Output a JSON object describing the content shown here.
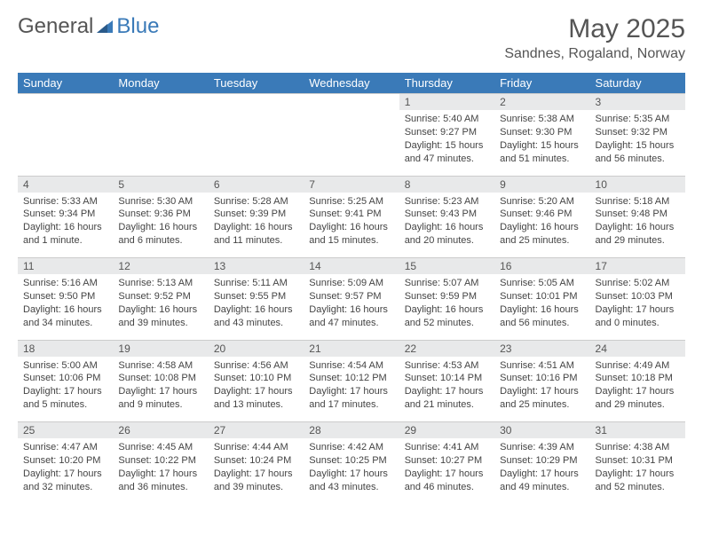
{
  "brand": {
    "part1": "General",
    "part2": "Blue"
  },
  "title": "May 2025",
  "location": "Sandnes, Rogaland, Norway",
  "colors": {
    "header_bg": "#3a7ab8",
    "header_text": "#ffffff",
    "daybar_bg": "#e8e9ea",
    "text": "#444444",
    "page_bg": "#ffffff"
  },
  "weekdays": [
    "Sunday",
    "Monday",
    "Tuesday",
    "Wednesday",
    "Thursday",
    "Friday",
    "Saturday"
  ],
  "weeks": [
    [
      null,
      null,
      null,
      null,
      {
        "n": "1",
        "sr": "Sunrise: 5:40 AM",
        "ss": "Sunset: 9:27 PM",
        "dl": "Daylight: 15 hours and 47 minutes."
      },
      {
        "n": "2",
        "sr": "Sunrise: 5:38 AM",
        "ss": "Sunset: 9:30 PM",
        "dl": "Daylight: 15 hours and 51 minutes."
      },
      {
        "n": "3",
        "sr": "Sunrise: 5:35 AM",
        "ss": "Sunset: 9:32 PM",
        "dl": "Daylight: 15 hours and 56 minutes."
      }
    ],
    [
      {
        "n": "4",
        "sr": "Sunrise: 5:33 AM",
        "ss": "Sunset: 9:34 PM",
        "dl": "Daylight: 16 hours and 1 minute."
      },
      {
        "n": "5",
        "sr": "Sunrise: 5:30 AM",
        "ss": "Sunset: 9:36 PM",
        "dl": "Daylight: 16 hours and 6 minutes."
      },
      {
        "n": "6",
        "sr": "Sunrise: 5:28 AM",
        "ss": "Sunset: 9:39 PM",
        "dl": "Daylight: 16 hours and 11 minutes."
      },
      {
        "n": "7",
        "sr": "Sunrise: 5:25 AM",
        "ss": "Sunset: 9:41 PM",
        "dl": "Daylight: 16 hours and 15 minutes."
      },
      {
        "n": "8",
        "sr": "Sunrise: 5:23 AM",
        "ss": "Sunset: 9:43 PM",
        "dl": "Daylight: 16 hours and 20 minutes."
      },
      {
        "n": "9",
        "sr": "Sunrise: 5:20 AM",
        "ss": "Sunset: 9:46 PM",
        "dl": "Daylight: 16 hours and 25 minutes."
      },
      {
        "n": "10",
        "sr": "Sunrise: 5:18 AM",
        "ss": "Sunset: 9:48 PM",
        "dl": "Daylight: 16 hours and 29 minutes."
      }
    ],
    [
      {
        "n": "11",
        "sr": "Sunrise: 5:16 AM",
        "ss": "Sunset: 9:50 PM",
        "dl": "Daylight: 16 hours and 34 minutes."
      },
      {
        "n": "12",
        "sr": "Sunrise: 5:13 AM",
        "ss": "Sunset: 9:52 PM",
        "dl": "Daylight: 16 hours and 39 minutes."
      },
      {
        "n": "13",
        "sr": "Sunrise: 5:11 AM",
        "ss": "Sunset: 9:55 PM",
        "dl": "Daylight: 16 hours and 43 minutes."
      },
      {
        "n": "14",
        "sr": "Sunrise: 5:09 AM",
        "ss": "Sunset: 9:57 PM",
        "dl": "Daylight: 16 hours and 47 minutes."
      },
      {
        "n": "15",
        "sr": "Sunrise: 5:07 AM",
        "ss": "Sunset: 9:59 PM",
        "dl": "Daylight: 16 hours and 52 minutes."
      },
      {
        "n": "16",
        "sr": "Sunrise: 5:05 AM",
        "ss": "Sunset: 10:01 PM",
        "dl": "Daylight: 16 hours and 56 minutes."
      },
      {
        "n": "17",
        "sr": "Sunrise: 5:02 AM",
        "ss": "Sunset: 10:03 PM",
        "dl": "Daylight: 17 hours and 0 minutes."
      }
    ],
    [
      {
        "n": "18",
        "sr": "Sunrise: 5:00 AM",
        "ss": "Sunset: 10:06 PM",
        "dl": "Daylight: 17 hours and 5 minutes."
      },
      {
        "n": "19",
        "sr": "Sunrise: 4:58 AM",
        "ss": "Sunset: 10:08 PM",
        "dl": "Daylight: 17 hours and 9 minutes."
      },
      {
        "n": "20",
        "sr": "Sunrise: 4:56 AM",
        "ss": "Sunset: 10:10 PM",
        "dl": "Daylight: 17 hours and 13 minutes."
      },
      {
        "n": "21",
        "sr": "Sunrise: 4:54 AM",
        "ss": "Sunset: 10:12 PM",
        "dl": "Daylight: 17 hours and 17 minutes."
      },
      {
        "n": "22",
        "sr": "Sunrise: 4:53 AM",
        "ss": "Sunset: 10:14 PM",
        "dl": "Daylight: 17 hours and 21 minutes."
      },
      {
        "n": "23",
        "sr": "Sunrise: 4:51 AM",
        "ss": "Sunset: 10:16 PM",
        "dl": "Daylight: 17 hours and 25 minutes."
      },
      {
        "n": "24",
        "sr": "Sunrise: 4:49 AM",
        "ss": "Sunset: 10:18 PM",
        "dl": "Daylight: 17 hours and 29 minutes."
      }
    ],
    [
      {
        "n": "25",
        "sr": "Sunrise: 4:47 AM",
        "ss": "Sunset: 10:20 PM",
        "dl": "Daylight: 17 hours and 32 minutes."
      },
      {
        "n": "26",
        "sr": "Sunrise: 4:45 AM",
        "ss": "Sunset: 10:22 PM",
        "dl": "Daylight: 17 hours and 36 minutes."
      },
      {
        "n": "27",
        "sr": "Sunrise: 4:44 AM",
        "ss": "Sunset: 10:24 PM",
        "dl": "Daylight: 17 hours and 39 minutes."
      },
      {
        "n": "28",
        "sr": "Sunrise: 4:42 AM",
        "ss": "Sunset: 10:25 PM",
        "dl": "Daylight: 17 hours and 43 minutes."
      },
      {
        "n": "29",
        "sr": "Sunrise: 4:41 AM",
        "ss": "Sunset: 10:27 PM",
        "dl": "Daylight: 17 hours and 46 minutes."
      },
      {
        "n": "30",
        "sr": "Sunrise: 4:39 AM",
        "ss": "Sunset: 10:29 PM",
        "dl": "Daylight: 17 hours and 49 minutes."
      },
      {
        "n": "31",
        "sr": "Sunrise: 4:38 AM",
        "ss": "Sunset: 10:31 PM",
        "dl": "Daylight: 17 hours and 52 minutes."
      }
    ]
  ]
}
